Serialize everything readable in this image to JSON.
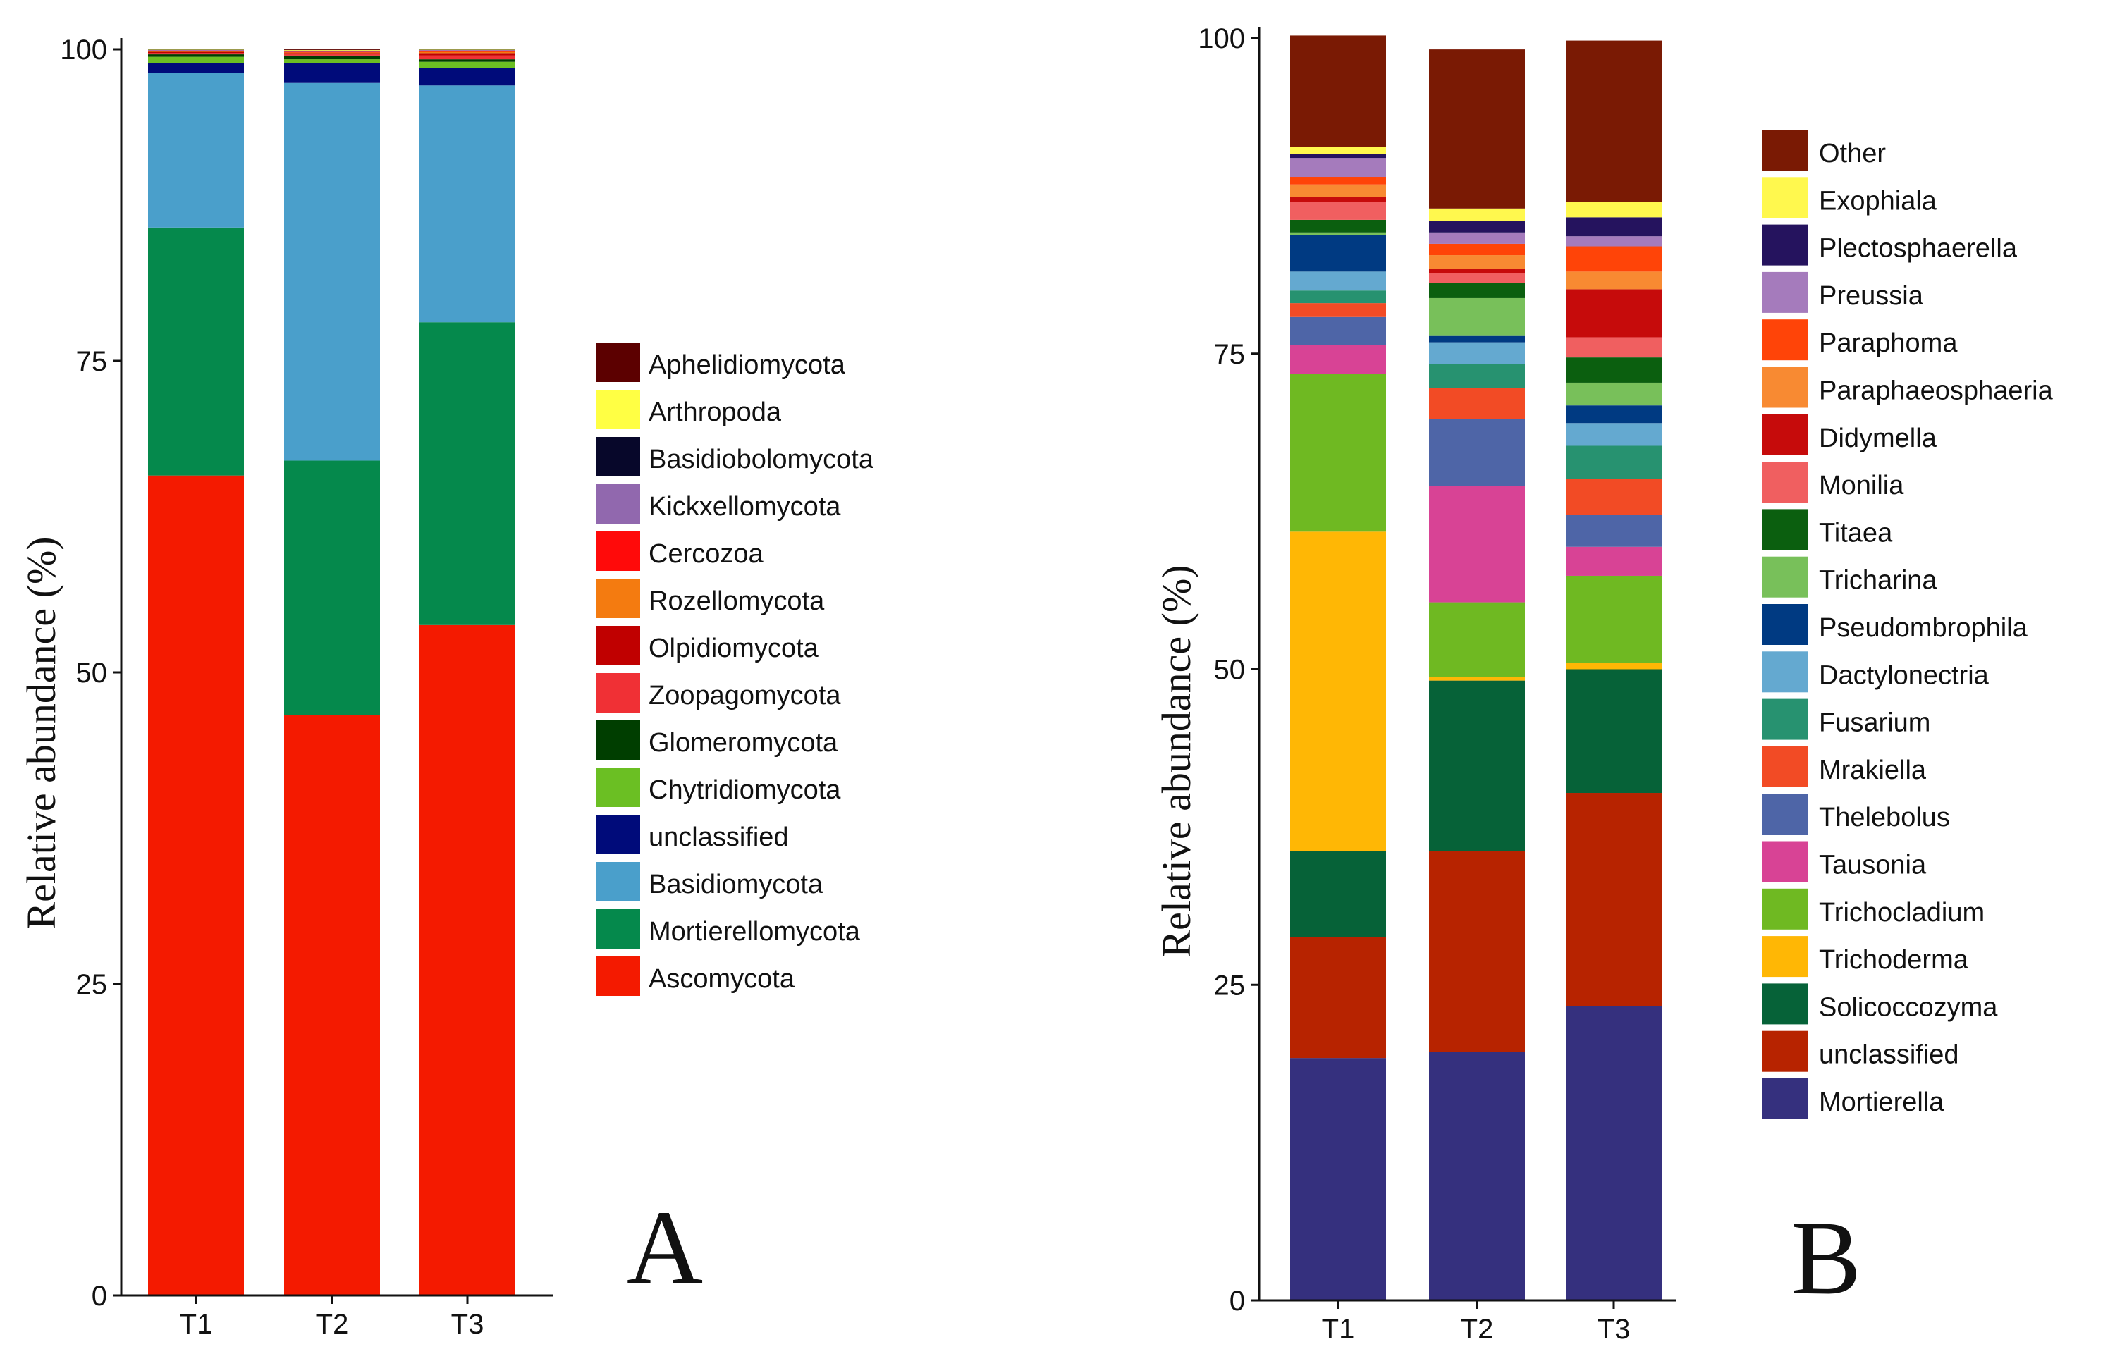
{
  "chart_data": [
    {
      "type": "bar",
      "stacked": true,
      "panel_label": "A",
      "title": "",
      "xlabel": "",
      "ylabel": "Relative abundance (%)",
      "ylim": [
        0,
        100
      ],
      "yticks": [
        0,
        25,
        50,
        75,
        100
      ],
      "grid": false,
      "legend_position": "right",
      "categories": [
        "T1",
        "T2",
        "T3"
      ],
      "series": [
        {
          "name": "Ascomycota",
          "color": "#F41A00",
          "values": [
            65.8,
            46.6,
            53.8
          ]
        },
        {
          "name": "Mortierellomycota",
          "color": "#05894C",
          "values": [
            19.9,
            20.4,
            24.3
          ]
        },
        {
          "name": "Basidiomycota",
          "color": "#4A9FCB",
          "values": [
            12.4,
            30.3,
            19.0
          ]
        },
        {
          "name": "unclassified",
          "color": "#000B7A",
          "values": [
            0.8,
            1.6,
            1.4
          ]
        },
        {
          "name": "Chytridiomycota",
          "color": "#6BBF23",
          "values": [
            0.5,
            0.3,
            0.5
          ]
        },
        {
          "name": "Glomeromycota",
          "color": "#003E00",
          "values": [
            0.2,
            0.3,
            0.2
          ]
        },
        {
          "name": "Zoopagomycota",
          "color": "#F03035",
          "values": [
            0.1,
            0.1,
            0.3
          ]
        },
        {
          "name": "Olpidiomycota",
          "color": "#C00000",
          "values": [
            0.1,
            0.1,
            0.2
          ]
        },
        {
          "name": "Rozellomycota",
          "color": "#F47B10",
          "values": [
            0.05,
            0.05,
            0.1
          ]
        },
        {
          "name": "Cercozoa",
          "color": "#FF0A0A",
          "values": [
            0.05,
            0.05,
            0.1
          ]
        },
        {
          "name": "Kickxellomycota",
          "color": "#9168AE",
          "values": [
            0.05,
            0.05,
            0.05
          ]
        },
        {
          "name": "Basidiobolomycota",
          "color": "#07072A",
          "values": [
            0.03,
            0.05,
            0.03
          ]
        },
        {
          "name": "Arthropoda",
          "color": "#FFFF44",
          "values": [
            0.02,
            0.05,
            0.02
          ]
        },
        {
          "name": "Aphelidiomycota",
          "color": "#5C0000",
          "values": [
            0.0,
            0.05,
            0.0
          ]
        }
      ]
    },
    {
      "type": "bar",
      "stacked": true,
      "panel_label": "B",
      "title": "",
      "xlabel": "",
      "ylabel": "Relative abundance (%)",
      "ylim": [
        0,
        100
      ],
      "yticks": [
        0,
        25,
        50,
        75,
        100
      ],
      "grid": false,
      "legend_position": "right",
      "categories": [
        "T1",
        "T2",
        "T3"
      ],
      "series": [
        {
          "name": "Mortierella",
          "color": "#35307E",
          "values": [
            19.2,
            19.7,
            23.3
          ]
        },
        {
          "name": "unclassified",
          "color": "#B72300",
          "values": [
            9.6,
            15.9,
            16.9
          ]
        },
        {
          "name": "Solicoccozyma",
          "color": "#066238",
          "values": [
            6.8,
            13.5,
            9.8
          ]
        },
        {
          "name": "Trichoderma",
          "color": "#FFB705",
          "values": [
            25.3,
            0.3,
            0.5
          ]
        },
        {
          "name": "Trichocladium",
          "color": "#6FB922",
          "values": [
            12.5,
            5.9,
            6.9
          ]
        },
        {
          "name": "Tausonia",
          "color": "#D84395",
          "values": [
            2.3,
            9.2,
            2.3
          ]
        },
        {
          "name": "Thelebolus",
          "color": "#4E65A7",
          "values": [
            2.2,
            5.3,
            2.5
          ]
        },
        {
          "name": "Mrakiella",
          "color": "#F24B25",
          "values": [
            1.1,
            2.5,
            2.9
          ]
        },
        {
          "name": "Fusarium",
          "color": "#279270",
          "values": [
            1.0,
            1.9,
            2.6
          ]
        },
        {
          "name": "Dactylonectria",
          "color": "#64A9D0",
          "values": [
            1.5,
            1.7,
            1.8
          ]
        },
        {
          "name": "Pseudombrophila",
          "color": "#003A82",
          "values": [
            2.9,
            0.5,
            1.4
          ]
        },
        {
          "name": "Tricharina",
          "color": "#78C05A",
          "values": [
            0.2,
            3.0,
            1.8
          ]
        },
        {
          "name": "Titaea",
          "color": "#0B5F0F",
          "values": [
            1.0,
            1.2,
            2.0
          ]
        },
        {
          "name": "Monilia",
          "color": "#F05F60",
          "values": [
            1.4,
            0.8,
            1.6
          ]
        },
        {
          "name": "Didymella",
          "color": "#C60B0B",
          "values": [
            0.4,
            0.3,
            3.8
          ]
        },
        {
          "name": "Paraphaeosphaeria",
          "color": "#F88A32",
          "values": [
            1.0,
            1.1,
            1.4
          ]
        },
        {
          "name": "Paraphoma",
          "color": "#FF4408",
          "values": [
            0.6,
            0.9,
            2.0
          ]
        },
        {
          "name": "Preussia",
          "color": "#A57BBC",
          "values": [
            1.5,
            0.9,
            0.8
          ]
        },
        {
          "name": "Plectosphaerella",
          "color": "#25135E",
          "values": [
            0.3,
            0.9,
            1.5
          ]
        },
        {
          "name": "Exophiala",
          "color": "#FFF84E",
          "values": [
            0.6,
            1.0,
            1.2
          ]
        },
        {
          "name": "Other",
          "color": "#7A1A04",
          "values": [
            8.8,
            12.6,
            12.8
          ]
        }
      ]
    }
  ]
}
